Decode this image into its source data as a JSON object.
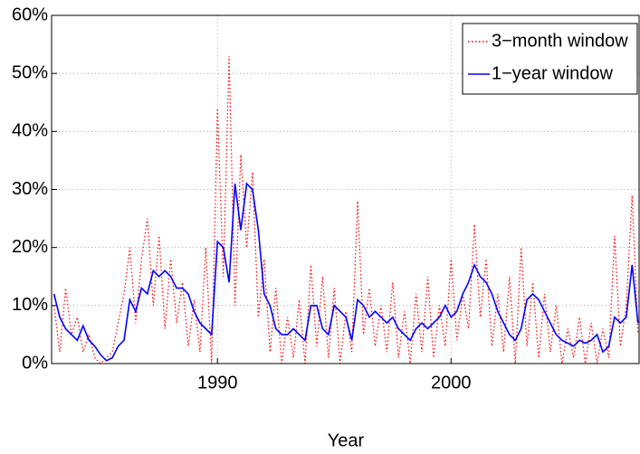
{
  "chart_data": {
    "type": "line",
    "x_label": "Year",
    "x": [
      1983,
      1983.25,
      1983.5,
      1983.75,
      1984,
      1984.25,
      1984.5,
      1984.75,
      1985,
      1985.25,
      1985.5,
      1985.75,
      1986,
      1986.25,
      1986.5,
      1986.75,
      1987,
      1987.25,
      1987.5,
      1987.75,
      1988,
      1988.25,
      1988.5,
      1988.75,
      1989,
      1989.25,
      1989.5,
      1989.75,
      1990,
      1990.25,
      1990.5,
      1990.75,
      1991,
      1991.25,
      1991.5,
      1991.75,
      1992,
      1992.25,
      1992.5,
      1992.75,
      1993,
      1993.25,
      1993.5,
      1993.75,
      1994,
      1994.25,
      1994.5,
      1994.75,
      1995,
      1995.25,
      1995.5,
      1995.75,
      1996,
      1996.25,
      1996.5,
      1996.75,
      1997,
      1997.25,
      1997.5,
      1997.75,
      1998,
      1998.25,
      1998.5,
      1998.75,
      1999,
      1999.25,
      1999.5,
      1999.75,
      2000,
      2000.25,
      2000.5,
      2000.75,
      2001,
      2001.25,
      2001.5,
      2001.75,
      2002,
      2002.25,
      2002.5,
      2002.75,
      2003,
      2003.25,
      2003.5,
      2003.75,
      2004,
      2004.25,
      2004.5,
      2004.75,
      2005,
      2005.25,
      2005.5,
      2005.75,
      2006,
      2006.25,
      2006.5,
      2006.75,
      2007,
      2007.25,
      2007.5,
      2007.75,
      2008
    ],
    "series": [
      {
        "name": "3−month window",
        "color": "#ff0000",
        "dash": "dotted",
        "values": [
          10,
          2,
          13,
          5,
          8,
          2,
          5,
          1,
          0,
          1,
          2,
          7,
          12,
          20,
          7,
          18,
          25,
          10,
          22,
          6,
          18,
          7,
          14,
          3,
          11,
          2,
          20,
          0,
          44,
          15,
          53,
          10,
          36,
          20,
          33,
          8,
          18,
          2,
          13,
          0,
          8,
          1,
          11,
          0,
          17,
          3,
          15,
          1,
          13,
          0,
          9,
          2,
          28,
          5,
          13,
          3,
          10,
          2,
          14,
          1,
          9,
          0,
          12,
          2,
          15,
          1,
          10,
          3,
          18,
          4,
          12,
          6,
          24,
          8,
          18,
          3,
          12,
          2,
          15,
          0,
          20,
          3,
          14,
          1,
          12,
          2,
          10,
          0,
          6,
          1,
          8,
          0,
          7,
          0,
          6,
          1,
          22,
          3,
          10,
          29,
          5
        ]
      },
      {
        "name": "1−year window",
        "color": "#0000ff",
        "dash": "solid",
        "values": [
          12,
          8,
          6,
          5,
          4,
          6.5,
          4,
          3,
          1.5,
          0.5,
          1,
          3,
          4,
          11,
          9,
          13,
          12,
          16,
          15,
          16,
          15,
          13,
          13,
          12,
          9,
          7,
          6,
          5,
          21,
          20,
          14,
          31,
          23,
          31,
          30,
          23,
          12,
          10,
          6,
          5,
          5,
          6,
          5,
          4,
          10,
          10,
          6,
          5,
          10,
          9,
          8,
          4,
          11,
          10,
          8,
          9,
          8,
          7,
          8,
          6,
          5,
          4,
          6,
          7,
          6,
          7,
          8,
          10,
          8,
          9,
          12,
          14,
          17,
          15,
          14,
          12,
          9,
          7,
          5,
          4,
          6,
          11,
          12,
          11,
          9,
          7,
          5,
          4,
          3.5,
          3,
          4,
          3.5,
          4,
          5,
          2,
          3,
          8,
          7,
          8,
          17,
          7
        ]
      }
    ],
    "xlim": [
      1982.9,
      2008.05
    ],
    "xticks": [
      1990,
      2000
    ],
    "ylim": [
      0,
      60
    ],
    "yticks": [
      {
        "value": 0,
        "label": "0%"
      },
      {
        "value": 10,
        "label": "10%"
      },
      {
        "value": 20,
        "label": "20%"
      },
      {
        "value": 30,
        "label": "30%"
      },
      {
        "value": 40,
        "label": "40%"
      },
      {
        "value": 50,
        "label": "50%"
      },
      {
        "value": 60,
        "label": "60%"
      }
    ],
    "grid": true,
    "legend": "upper right"
  }
}
